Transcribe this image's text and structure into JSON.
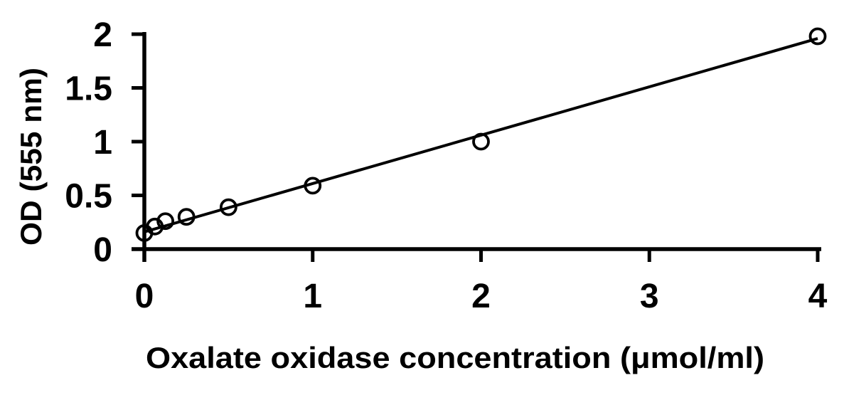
{
  "chart_data": {
    "type": "scatter",
    "title": "",
    "xlabel": "Oxalate oxidase concentration (μmol/ml)",
    "ylabel": "OD (555 nm)",
    "points": {
      "x": [
        0,
        0.0625,
        0.125,
        0.25,
        0.5,
        1,
        2,
        4
      ],
      "y": [
        0.15,
        0.21,
        0.26,
        0.3,
        0.39,
        0.59,
        1.0,
        1.98
      ]
    },
    "trendline": {
      "x1": 0,
      "y1": 0.16,
      "x2": 4,
      "y2": 1.96
    },
    "xlim": [
      0,
      4
    ],
    "ylim": [
      0,
      2
    ],
    "xticks": [
      0,
      1,
      2,
      3,
      4
    ],
    "yticks": [
      0,
      0.5,
      1,
      1.5,
      2
    ],
    "xtick_labels": [
      "0",
      "1",
      "2",
      "3",
      "4"
    ],
    "ytick_labels": [
      "0",
      "0.5",
      "1",
      "1.5",
      "2"
    ],
    "grid": false,
    "legend": false,
    "marker_style": "open-circle",
    "colors": {
      "axis": "#000000",
      "line": "#000000",
      "marker_stroke": "#000000",
      "text": "#000000",
      "background": "#ffffff"
    }
  }
}
